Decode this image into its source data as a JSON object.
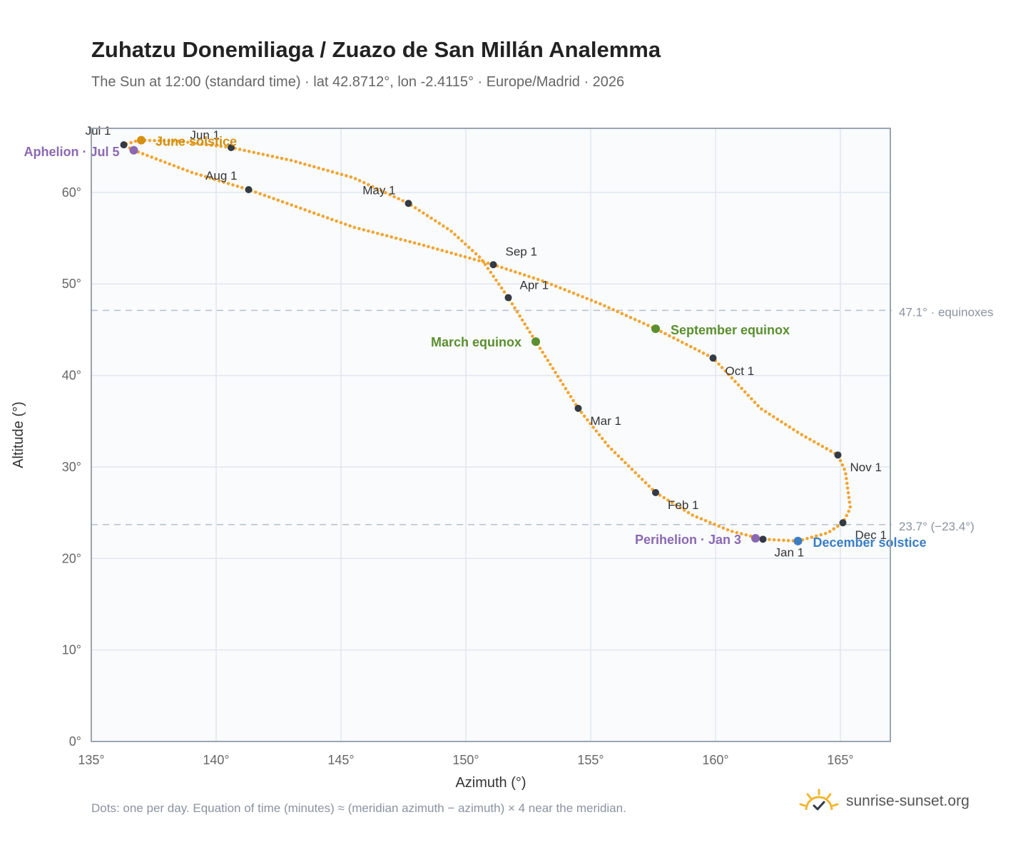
{
  "header": {
    "title": "Zuhatzu Donemiliaga / Zuazo de San Millán Analemma",
    "subtitle": "The Sun at 12:00 (standard time) · lat 42.8712°, lon -2.4115° · Europe/Madrid · 2026"
  },
  "footer": {
    "note": "Dots: one per day. Equation of time (minutes) ≈ (meridian azimuth − azimuth) × 4 near the meridian.",
    "brand": "sunrise-sunset.org",
    "brand_icon": "sun-logo-icon"
  },
  "colors": {
    "curve": "#f2a531",
    "month_dot": "#333a44",
    "solstice_june": "#d4900f",
    "solstice_december": "#3b7ec2",
    "equinox": "#5a8f2e",
    "apsis": "#8b68b3",
    "ref_line": "#b8c0ca",
    "plot_bg": "#f9fbfd",
    "grid": "#e1e7ee",
    "frame": "#9aa5b1"
  },
  "chart_data": {
    "type": "scatter",
    "xlabel": "Azimuth (°)",
    "ylabel": "Altitude (°)",
    "xlim": [
      135,
      167
    ],
    "ylim": [
      0,
      67
    ],
    "x_ticks": [
      "135°",
      "140°",
      "145°",
      "150°",
      "155°",
      "160°",
      "165°"
    ],
    "x_tick_values": [
      135,
      140,
      145,
      150,
      155,
      160,
      165
    ],
    "y_ticks": [
      "0°",
      "10°",
      "20°",
      "30°",
      "40°",
      "50°",
      "60°"
    ],
    "y_tick_values": [
      0,
      10,
      20,
      30,
      40,
      50,
      60
    ],
    "grid": true,
    "path_points": [
      [
        163.3,
        21.9
      ],
      [
        164.5,
        22.8
      ],
      [
        165.1,
        23.9
      ],
      [
        165.4,
        25.5
      ],
      [
        165.3,
        27.5
      ],
      [
        165.2,
        29.5
      ],
      [
        164.9,
        31.3
      ],
      [
        163.4,
        33.6
      ],
      [
        161.8,
        36.4
      ],
      [
        159.9,
        41.9
      ],
      [
        157.6,
        45.1
      ],
      [
        155.4,
        47.8
      ],
      [
        153.1,
        50.3
      ],
      [
        151.1,
        52.1
      ],
      [
        148.2,
        54.3
      ],
      [
        145.5,
        56.2
      ],
      [
        141.3,
        60.3
      ],
      [
        139.0,
        62.2
      ],
      [
        136.7,
        64.6
      ],
      [
        136.3,
        65.2
      ],
      [
        136.9,
        65.7
      ],
      [
        138.5,
        65.6
      ],
      [
        140.6,
        64.9
      ],
      [
        143.0,
        63.5
      ],
      [
        145.5,
        61.6
      ],
      [
        147.7,
        58.8
      ],
      [
        149.4,
        55.8
      ],
      [
        150.6,
        52.8
      ],
      [
        151.7,
        48.5
      ],
      [
        152.8,
        43.7
      ],
      [
        154.5,
        36.4
      ],
      [
        155.7,
        32.3
      ],
      [
        157.6,
        27.2
      ],
      [
        159.1,
        24.7
      ],
      [
        160.6,
        23.0
      ],
      [
        161.9,
        22.1
      ],
      [
        163.3,
        21.9
      ]
    ],
    "month_markers": [
      {
        "label": "Jan 1",
        "az": 161.9,
        "alt": 22.1
      },
      {
        "label": "Feb 1",
        "az": 157.6,
        "alt": 27.2
      },
      {
        "label": "Mar 1",
        "az": 154.5,
        "alt": 36.4
      },
      {
        "label": "Apr 1",
        "az": 151.7,
        "alt": 48.5
      },
      {
        "label": "May 1",
        "az": 147.7,
        "alt": 58.8
      },
      {
        "label": "Jun 1",
        "az": 140.6,
        "alt": 64.9
      },
      {
        "label": "Jul 1",
        "az": 136.3,
        "alt": 65.2
      },
      {
        "label": "Aug 1",
        "az": 141.3,
        "alt": 60.3
      },
      {
        "label": "Sep 1",
        "az": 151.1,
        "alt": 52.1
      },
      {
        "label": "Oct 1",
        "az": 159.9,
        "alt": 41.9
      },
      {
        "label": "Nov 1",
        "az": 164.9,
        "alt": 31.3
      },
      {
        "label": "Dec 1",
        "az": 165.1,
        "alt": 23.9
      }
    ],
    "events": [
      {
        "label": "June solstice",
        "az": 137.0,
        "alt": 65.7,
        "color": "#d4900f"
      },
      {
        "label": "Aphelion · Jul 5",
        "az": 136.7,
        "alt": 64.6,
        "color": "#8b68b3"
      },
      {
        "label": "March equinox",
        "az": 152.8,
        "alt": 43.7,
        "color": "#5a8f2e"
      },
      {
        "label": "September equinox",
        "az": 157.6,
        "alt": 45.1,
        "color": "#5a8f2e"
      },
      {
        "label": "Perihelion · Jan 3",
        "az": 161.6,
        "alt": 22.2,
        "color": "#8b68b3"
      },
      {
        "label": "December solstice",
        "az": 163.3,
        "alt": 21.9,
        "color": "#3b7ec2"
      }
    ],
    "reference_lines": [
      {
        "alt": 47.1,
        "label": "47.1° · equinoxes"
      },
      {
        "alt": 23.7,
        "label": "23.7° (−23.4°)"
      }
    ]
  }
}
